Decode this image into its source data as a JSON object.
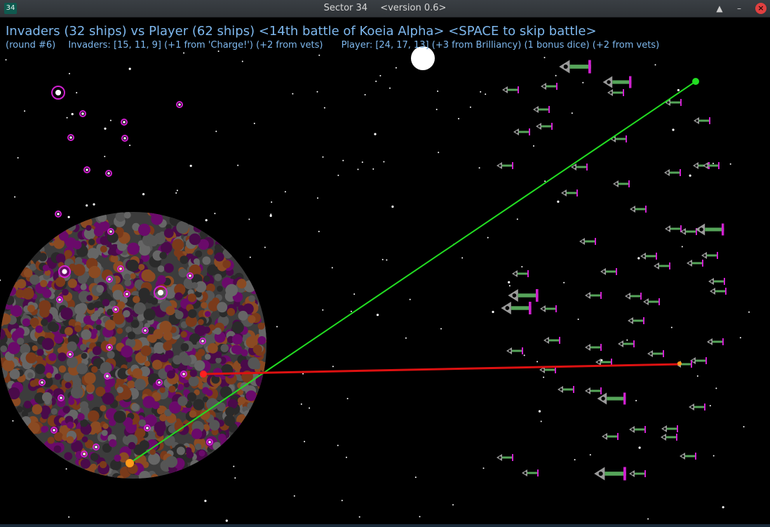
{
  "window": {
    "icon_label": "34",
    "title": "Sector 34",
    "version": "<version 0.6>",
    "btn_up": "▲",
    "btn_min": "–",
    "btn_close": "×"
  },
  "hud": {
    "headline": "Invaders (32 ships) vs Player (62 ships) <14th battle of Koeia Alpha> <SPACE to skip battle>",
    "round": "(round #6)",
    "invaders_status": "Invaders: [15, 11, 9] (+1 from 'Charge!') (+2 from vets)",
    "player_status": "Player: [24, 17, 13] (+3 from Brilliancy) (1 bonus dice) (+2 from vets)"
  },
  "colors": {
    "hud_text": "#7eb8ee",
    "player_laser": "#22dd22",
    "invader_laser": "#dd1111",
    "ship_green": "#56a55a",
    "ship_magenta": "#d020d0",
    "planet_brown": "#7a3a1a",
    "planet_purple": "#6a0a6a",
    "planet_grey": "#555555"
  }
}
